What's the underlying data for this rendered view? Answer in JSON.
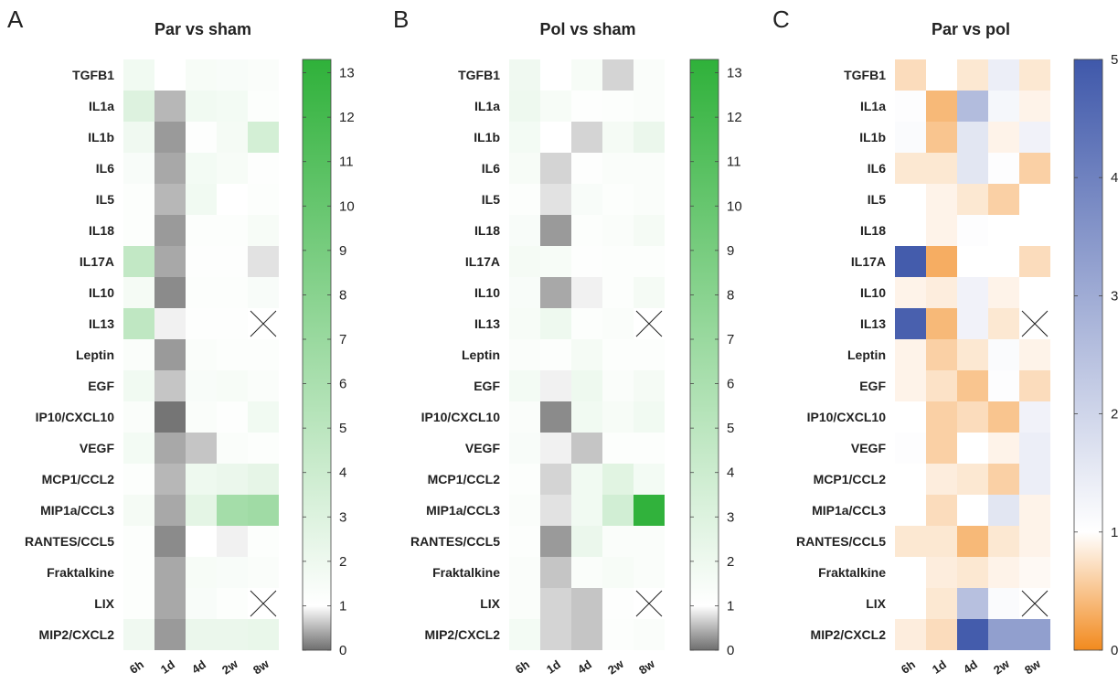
{
  "chart_data": [
    {
      "type": "heatmap",
      "panel": "A",
      "title": "Par vs sham",
      "rows": [
        "TGFB1",
        "IL1a",
        "IL1b",
        "IL6",
        "IL5",
        "IL18",
        "IL17A",
        "IL10",
        "IL13",
        "Leptin",
        "EGF",
        "IP10/CXCL10",
        "VEGF",
        "MCP1/CCL2",
        "MIP1a/CCL3",
        "RANTES/CCL5",
        "Fraktalkine",
        "LIX",
        "MIP2/CXCL2"
      ],
      "columns": [
        "6h",
        "1d",
        "4d",
        "2w",
        "8w"
      ],
      "values": [
        [
          1.8,
          1.0,
          1.5,
          1.4,
          1.3
        ],
        [
          3.0,
          0.5,
          1.8,
          1.7,
          1.2
        ],
        [
          1.9,
          0.3,
          1.1,
          1.6,
          3.6
        ],
        [
          1.4,
          0.4,
          1.7,
          1.5,
          1.1
        ],
        [
          1.2,
          0.5,
          1.8,
          1.0,
          1.2
        ],
        [
          1.2,
          0.3,
          1.2,
          1.2,
          1.5
        ],
        [
          4.6,
          0.4,
          1.1,
          1.1,
          0.8
        ],
        [
          1.6,
          0.2,
          1.2,
          1.2,
          1.4
        ],
        [
          4.8,
          0.9,
          1.1,
          1.1,
          null
        ],
        [
          1.3,
          0.3,
          1.3,
          1.2,
          1.2
        ],
        [
          1.8,
          0.6,
          1.4,
          1.5,
          1.3
        ],
        [
          1.3,
          0.05,
          1.3,
          1.1,
          1.8
        ],
        [
          1.7,
          0.4,
          0.6,
          1.3,
          1.2
        ],
        [
          1.2,
          0.5,
          2.0,
          2.2,
          2.5
        ],
        [
          1.6,
          0.4,
          2.6,
          6.4,
          6.6
        ],
        [
          1.2,
          0.2,
          1.0,
          0.9,
          1.2
        ],
        [
          1.2,
          0.4,
          1.5,
          1.4,
          1.3
        ],
        [
          1.2,
          0.4,
          1.4,
          1.2,
          null
        ],
        [
          1.9,
          0.3,
          2.2,
          2.2,
          2.3
        ]
      ],
      "missing": [
        [
          8,
          4
        ],
        [
          17,
          4
        ]
      ],
      "colorbar": {
        "ticks": [
          0,
          1,
          2,
          3,
          4,
          5,
          6,
          7,
          8,
          9,
          10,
          11,
          12,
          13
        ],
        "range": [
          0,
          13.3
        ],
        "colors": [
          "#6e6e6e",
          "#ffffff",
          "#2fb13a"
        ]
      }
    },
    {
      "type": "heatmap",
      "panel": "B",
      "title": "Pol vs sham",
      "rows": [
        "TGFB1",
        "IL1a",
        "IL1b",
        "IL6",
        "IL5",
        "IL18",
        "IL17A",
        "IL10",
        "IL13",
        "Leptin",
        "EGF",
        "IP10/CXCL10",
        "VEGF",
        "MCP1/CCL2",
        "MIP1a/CCL3",
        "RANTES/CCL5",
        "Fraktalkine",
        "LIX",
        "MIP2/CXCL2"
      ],
      "columns": [
        "6h",
        "1d",
        "4d",
        "2w",
        "8w"
      ],
      "values": [
        [
          1.9,
          1.0,
          1.5,
          0.7,
          1.3
        ],
        [
          2.0,
          1.5,
          1.1,
          1.2,
          1.3
        ],
        [
          1.7,
          1.0,
          0.7,
          1.6,
          2.2
        ],
        [
          1.5,
          0.7,
          1.1,
          1.3,
          1.3
        ],
        [
          1.2,
          0.8,
          1.4,
          1.2,
          1.3
        ],
        [
          1.4,
          0.3,
          1.2,
          1.3,
          1.6
        ],
        [
          1.6,
          1.5,
          1.1,
          1.2,
          1.2
        ],
        [
          1.4,
          0.4,
          0.9,
          1.2,
          1.6
        ],
        [
          1.5,
          2.0,
          1.2,
          1.3,
          null
        ],
        [
          1.3,
          1.2,
          1.6,
          1.2,
          1.2
        ],
        [
          1.7,
          0.9,
          2.0,
          1.3,
          1.6
        ],
        [
          1.3,
          0.2,
          1.8,
          1.5,
          1.8
        ],
        [
          1.4,
          0.9,
          0.6,
          1.2,
          1.2
        ],
        [
          1.2,
          0.7,
          1.8,
          2.8,
          1.7
        ],
        [
          1.3,
          0.8,
          1.8,
          3.7,
          13.2
        ],
        [
          1.2,
          0.3,
          2.2,
          1.3,
          1.3
        ],
        [
          1.3,
          0.6,
          1.3,
          1.5,
          1.3
        ],
        [
          1.3,
          0.7,
          0.6,
          1.1,
          null
        ],
        [
          1.7,
          0.7,
          0.6,
          1.2,
          1.3
        ]
      ],
      "missing": [
        [
          8,
          4
        ],
        [
          17,
          4
        ]
      ],
      "colorbar": {
        "ticks": [
          0,
          1,
          2,
          3,
          4,
          5,
          6,
          7,
          8,
          9,
          10,
          11,
          12,
          13
        ],
        "range": [
          0,
          13.3
        ],
        "colors": [
          "#6e6e6e",
          "#ffffff",
          "#2fb13a"
        ]
      }
    },
    {
      "type": "heatmap",
      "panel": "C",
      "title": "Par vs pol",
      "rows": [
        "TGFB1",
        "IL1a",
        "IL1b",
        "IL6",
        "IL5",
        "IL18",
        "IL17A",
        "IL10",
        "IL13",
        "Leptin",
        "EGF",
        "IP10/CXCL10",
        "VEGF",
        "MCP1/CCL2",
        "MIP1a/CCL3",
        "RANTES/CCL5",
        "Fraktalkine",
        "LIX",
        "MIP2/CXCL2"
      ],
      "columns": [
        "6h",
        "1d",
        "4d",
        "2w",
        "8w"
      ],
      "values": [
        [
          0.7,
          1.0,
          0.8,
          1.4,
          0.8
        ],
        [
          1.05,
          0.4,
          2.6,
          1.2,
          0.9
        ],
        [
          1.1,
          0.5,
          1.6,
          0.9,
          1.3
        ],
        [
          0.8,
          0.8,
          1.6,
          1.05,
          0.6
        ],
        [
          1.0,
          0.9,
          0.8,
          0.6,
          1.0
        ],
        [
          1.0,
          0.9,
          1.05,
          1.0,
          1.0
        ],
        [
          4.9,
          0.3,
          1.0,
          1.0,
          0.7
        ],
        [
          0.9,
          0.85,
          1.3,
          0.9,
          1.0
        ],
        [
          4.8,
          0.4,
          1.3,
          0.8,
          null
        ],
        [
          0.9,
          0.6,
          0.8,
          1.1,
          0.9
        ],
        [
          0.9,
          0.75,
          0.5,
          1.05,
          0.7
        ],
        [
          1.0,
          0.6,
          0.7,
          0.5,
          1.3
        ],
        [
          1.05,
          0.6,
          1.0,
          0.9,
          1.4
        ],
        [
          1.0,
          0.85,
          0.8,
          0.6,
          1.4
        ],
        [
          1.0,
          0.7,
          1.0,
          1.6,
          0.9
        ],
        [
          0.8,
          0.8,
          0.4,
          0.8,
          0.9
        ],
        [
          1.0,
          0.85,
          0.8,
          0.9,
          0.95
        ],
        [
          1.0,
          0.8,
          2.5,
          1.1,
          null
        ],
        [
          0.85,
          0.7,
          4.9,
          3.3,
          3.3
        ]
      ],
      "missing": [
        [
          8,
          4
        ],
        [
          17,
          4
        ]
      ],
      "colorbar": {
        "ticks": [
          0,
          1,
          2,
          3,
          4,
          5
        ],
        "range": [
          0,
          5
        ],
        "colors": [
          "#f28a1e",
          "#ffffff",
          "#3f58aa"
        ]
      }
    }
  ]
}
